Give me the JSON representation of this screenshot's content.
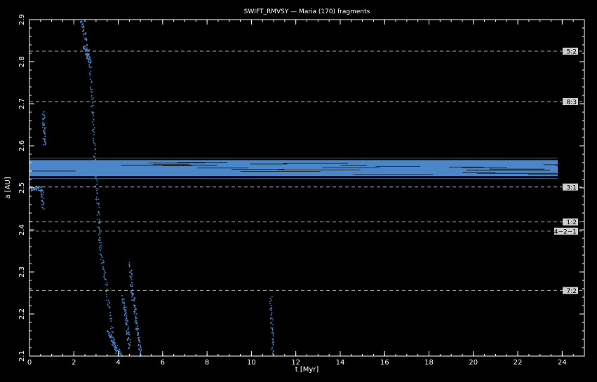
{
  "chart_data": {
    "type": "scatter",
    "title": "SWIFT_RMVSY — Maria (170) fragments",
    "xlabel": "t [Myr]",
    "ylabel": "a [AU]",
    "xlim": [
      0,
      25
    ],
    "ylim": [
      2.1,
      2.9
    ],
    "x_ticks": [
      0,
      2,
      4,
      6,
      8,
      10,
      12,
      14,
      16,
      18,
      20,
      22,
      24
    ],
    "y_ticks": [
      2.1,
      2.2,
      2.3,
      2.4,
      2.5,
      2.6,
      2.7,
      2.8,
      2.9
    ],
    "x_tick_labels": [
      "0",
      "2",
      "4",
      "6",
      "8",
      "10",
      "12",
      "14",
      "16",
      "18",
      "20",
      "22",
      "24"
    ],
    "y_tick_labels": [
      "2.1",
      "2.2",
      "2.3",
      "2.4",
      "2.5",
      "2.6",
      "2.7",
      "2.8",
      "2.9"
    ],
    "grid": false,
    "point_color": "#4a86c8",
    "resonance_line_color": "#aaaaaa",
    "resonances": [
      {
        "label": "5:2",
        "a": 2.825
      },
      {
        "label": "8:3",
        "a": 2.705
      },
      {
        "label": "3:1",
        "a": 2.502
      },
      {
        "label": "1:2",
        "a": 2.419
      },
      {
        "label": "4−2−1",
        "a": 2.397
      },
      {
        "label": "7:2",
        "a": 2.256
      }
    ],
    "main_band": {
      "t_start": 0.0,
      "t_end": 23.8,
      "a_min": 2.528,
      "a_max": 2.566
    },
    "escape_tracks": [
      {
        "t": [
          2.3,
          2.5,
          2.7,
          2.8,
          2.9,
          3.0,
          3.1,
          3.2,
          3.4,
          3.6,
          3.9
        ],
        "a": [
          2.9,
          2.86,
          2.8,
          2.7,
          2.6,
          2.5,
          2.42,
          2.35,
          2.28,
          2.2,
          2.1
        ]
      },
      {
        "t": [
          2.4,
          2.55,
          2.7
        ],
        "a": [
          2.84,
          2.82,
          2.8
        ]
      },
      {
        "t": [
          0.6,
          0.62,
          0.65
        ],
        "a": [
          2.68,
          2.64,
          2.6
        ]
      },
      {
        "t": [
          0.0,
          0.3,
          0.55,
          0.58
        ],
        "a": [
          2.5,
          2.5,
          2.5,
          2.45
        ]
      },
      {
        "t": [
          4.5,
          4.6,
          4.7,
          4.8,
          4.9,
          5.0
        ],
        "a": [
          2.32,
          2.26,
          2.22,
          2.18,
          2.14,
          2.1
        ]
      },
      {
        "t": [
          4.2,
          4.3,
          4.4,
          4.5
        ],
        "a": [
          2.24,
          2.2,
          2.16,
          2.12
        ]
      },
      {
        "t": [
          3.5,
          3.7,
          3.9,
          4.1
        ],
        "a": [
          2.16,
          2.14,
          2.12,
          2.1
        ]
      },
      {
        "t": [
          10.85,
          10.9,
          10.95
        ],
        "a": [
          2.24,
          2.17,
          2.1
        ]
      }
    ]
  }
}
